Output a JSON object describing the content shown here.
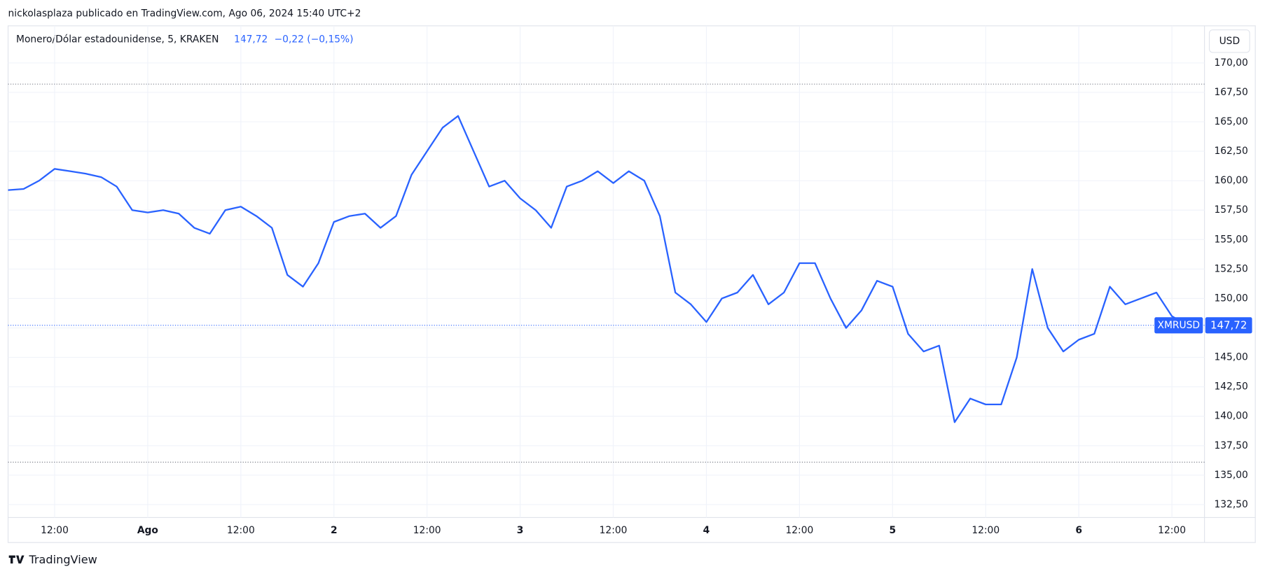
{
  "credit": "nickolasplaza publicado en TradingView.com, Ago 06, 2024 15:40 UTC+2",
  "brand": "TradingView",
  "chart_data": {
    "type": "line",
    "title": "Monero/Dólar estadounidense, 5, KRAKEN",
    "price_label": "147,72",
    "change_label": "−0,22 (−0,15%)",
    "unit": "USD",
    "symbol": "XMRUSD",
    "current_price": 147.72,
    "reference_lines": [
      168.2,
      136.1
    ],
    "xlim": [
      0,
      77.1
    ],
    "xticks": [
      {
        "value": 3,
        "label": "12:00"
      },
      {
        "value": 9,
        "label": "Ago"
      },
      {
        "value": 15,
        "label": "12:00"
      },
      {
        "value": 21,
        "label": "2"
      },
      {
        "value": 27,
        "label": "12:00"
      },
      {
        "value": 33,
        "label": "3"
      },
      {
        "value": 39,
        "label": "12:00"
      },
      {
        "value": 45,
        "label": "4"
      },
      {
        "value": 51,
        "label": "12:00"
      },
      {
        "value": 57,
        "label": "5"
      },
      {
        "value": 63,
        "label": "12:00"
      },
      {
        "value": 69,
        "label": "6"
      },
      {
        "value": 75,
        "label": "12:00"
      }
    ],
    "ylim": [
      131.4,
      173.15
    ],
    "yticks": [
      {
        "value": 132.5,
        "label": "132,50"
      },
      {
        "value": 135,
        "label": "135,00"
      },
      {
        "value": 137.5,
        "label": "137,50"
      },
      {
        "value": 140,
        "label": "140,00"
      },
      {
        "value": 142.5,
        "label": "142,50"
      },
      {
        "value": 145,
        "label": "145,00"
      },
      {
        "value": 147.5,
        "label": "147,50"
      },
      {
        "value": 150,
        "label": "150,00"
      },
      {
        "value": 152.5,
        "label": "152,50"
      },
      {
        "value": 155,
        "label": "155,00"
      },
      {
        "value": 157.5,
        "label": "157,50"
      },
      {
        "value": 160,
        "label": "160,00"
      },
      {
        "value": 162.5,
        "label": "162,50"
      },
      {
        "value": 165,
        "label": "165,00"
      },
      {
        "value": 167.5,
        "label": "167,50"
      },
      {
        "value": 170,
        "label": "170,00"
      }
    ],
    "grid": true,
    "series": [
      {
        "color": "#2962ff",
        "values": [
          159.2,
          159.3,
          160.0,
          161.0,
          160.8,
          160.6,
          160.3,
          159.5,
          157.5,
          157.3,
          157.5,
          157.2,
          156.0,
          155.5,
          157.5,
          157.8,
          157.0,
          156.0,
          152.0,
          151.0,
          153.0,
          156.5,
          157.0,
          157.2,
          156.0,
          157.0,
          160.5,
          162.5,
          164.5,
          165.5,
          162.5,
          159.5,
          160.0,
          158.5,
          157.5,
          156.0,
          159.5,
          160.0,
          160.8,
          159.8,
          160.8,
          160.0,
          157.0,
          150.5,
          149.5,
          148.0,
          150.0,
          150.5,
          152.0,
          149.5,
          150.5,
          153.0,
          153.0,
          150.0,
          147.5,
          149.0,
          151.5,
          151.0,
          147.0,
          145.5,
          146.0,
          139.5,
          141.5,
          141.0,
          141.0,
          145.0,
          152.5,
          147.5,
          145.5,
          146.5,
          147.0,
          151.0,
          149.5,
          150.0,
          150.5,
          148.5,
          147.72
        ]
      }
    ]
  }
}
